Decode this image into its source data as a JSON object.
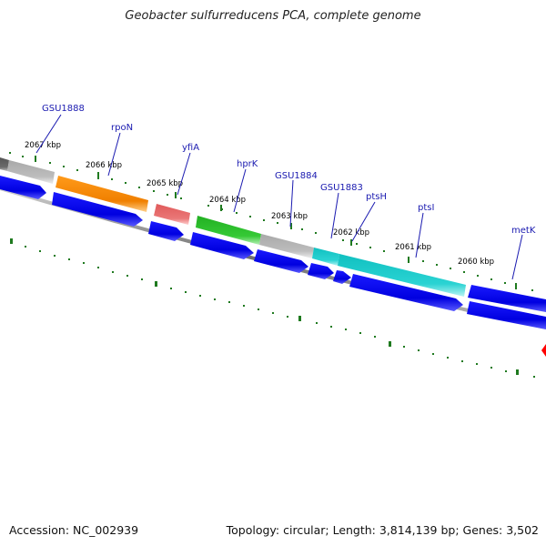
{
  "title": "Geobacter sulfurreducens PCA, complete genome",
  "footer": {
    "accession": "Accession: NC_002939",
    "summary": "Topology: circular; Length: 3,814,139 bp; Genes: 3,502"
  },
  "scale_ticks": [
    "2067 kbp",
    "2066 kbp",
    "2065 kbp",
    "2064 kbp",
    "2063 kbp",
    "2062 kbp",
    "2061 kbp",
    "2060 kbp"
  ],
  "gene_labels": [
    "GSU1888",
    "rpoN",
    "yfiA",
    "hprK",
    "GSU1884",
    "GSU1883",
    "ptsH",
    "ptsI",
    "metK"
  ],
  "colors": {
    "backbone": "#777777",
    "tick": "#1f7a1f",
    "cds_arrow": "#0000e6",
    "label": "#1a1ab0",
    "orange": "#ff8c00",
    "red": "#e86a6a",
    "green": "#2fbf2f",
    "gray": "#b3b3b3",
    "cyan": "#22cccc",
    "marker": "#ff0000"
  }
}
